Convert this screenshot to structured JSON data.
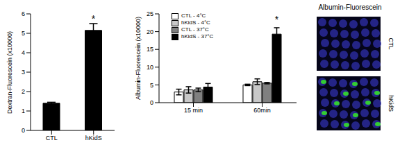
{
  "chart_data": [
    {
      "type": "bar",
      "y_label": "Dextran-Fluorescein (x10000)",
      "categories": [
        "CTL",
        "hKidS"
      ],
      "values": [
        1.4,
        5.15
      ],
      "errors": [
        0.05,
        0.35
      ],
      "color": "#000000",
      "ylim": [
        0,
        6
      ],
      "yticks": [
        0,
        1,
        2,
        3,
        4,
        5,
        6
      ],
      "grid": false,
      "annotations": [
        {
          "text": "*",
          "category": "hKidS"
        }
      ]
    },
    {
      "type": "bar",
      "y_label": "Albumin-Fluorescein (x10000)",
      "categories": [
        "15 min",
        "60min"
      ],
      "series": [
        {
          "name": "CTL - 4°C",
          "color": "#ffffff",
          "values": [
            3.0,
            5.0
          ],
          "errors": [
            0.8,
            0.2
          ]
        },
        {
          "name": "hKidS - 4°C",
          "color": "#c8c8c8",
          "values": [
            3.6,
            5.9
          ],
          "errors": [
            0.9,
            0.8
          ]
        },
        {
          "name": "CTL - 37°C",
          "color": "#808080",
          "values": [
            3.6,
            5.5
          ],
          "errors": [
            0.5,
            0.2
          ]
        },
        {
          "name": "hKidS - 37°C",
          "color": "#000000",
          "values": [
            4.4,
            19.3
          ],
          "errors": [
            1.0,
            1.8
          ]
        }
      ],
      "ylim": [
        0,
        25
      ],
      "yticks": [
        0,
        5,
        10,
        15,
        20,
        25
      ],
      "grid": false,
      "legend": "upper left",
      "annotations": [
        {
          "text": "*",
          "category": "60min",
          "series": "hKidS - 37°C"
        }
      ]
    }
  ],
  "images": {
    "title": "Albumin-Fluorescein",
    "labels": [
      "CTL",
      "hKidS"
    ]
  }
}
